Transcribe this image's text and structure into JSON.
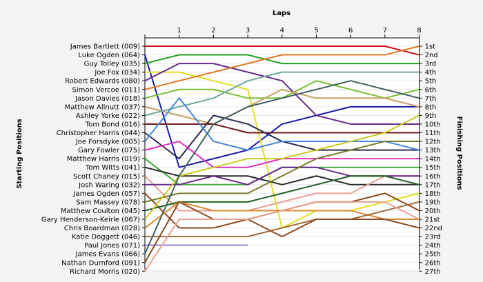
{
  "chart_data": {
    "type": "line",
    "title": "Laps",
    "left_label": "Starting Positions",
    "right_label": "Finishing Positions",
    "x_ticks": [
      "1",
      "2",
      "3",
      "4",
      "5",
      "6",
      "7",
      "8"
    ],
    "finish_labels": [
      "1st",
      "2nd",
      "3rd",
      "4th",
      "5th",
      "6th",
      "7th",
      "8th",
      "9th",
      "10th",
      "11th",
      "12th",
      "13th",
      "14th",
      "15th",
      "16th",
      "17th",
      "18th",
      "19th",
      "20th",
      "21st",
      "22nd",
      "23rd",
      "24th",
      "25th",
      "26th",
      "27th"
    ],
    "ylim": [
      1,
      27
    ],
    "series": [
      {
        "name": "James Bartlett (009)",
        "color": "#cc1111",
        "values": [
          1,
          1,
          1,
          1,
          1,
          1,
          1,
          1,
          2
        ]
      },
      {
        "name": "Luke Ogden (064)",
        "color": "#1a1aaa",
        "values": [
          2,
          15,
          14,
          13,
          10,
          9,
          8,
          8,
          8
        ]
      },
      {
        "name": "Guy Tolley (035)",
        "color": "#22a022",
        "values": [
          3,
          2,
          2,
          2,
          3,
          3,
          3,
          3,
          3
        ]
      },
      {
        "name": "Joe Fox (034)",
        "color": "#e0e020",
        "values": [
          4,
          4,
          5,
          6,
          22,
          20,
          20,
          19,
          18
        ]
      },
      {
        "name": "Robert Edwards (080)",
        "color": "#6a2a8a",
        "values": [
          5,
          3,
          3,
          4,
          5,
          9,
          10,
          10,
          10
        ]
      },
      {
        "name": "Simon Vercoe (011)",
        "color": "#e07820",
        "values": [
          6,
          5,
          4,
          3,
          2,
          2,
          2,
          2,
          1
        ]
      },
      {
        "name": "Jason Davies (018)",
        "color": "#7ac030",
        "values": [
          7,
          6,
          6,
          7,
          7,
          5,
          6,
          7,
          6
        ]
      },
      {
        "name": "Matthew Allnutt (037)",
        "color": "#c8a060",
        "values": [
          8,
          9,
          10,
          8,
          6,
          7,
          7,
          7,
          8
        ]
      },
      {
        "name": "Ashley Yorke (022)",
        "color": "#70a8a0",
        "values": [
          9,
          8,
          7,
          5,
          4,
          4,
          4,
          4,
          4
        ]
      },
      {
        "name": "Tom Bond (016)",
        "color": "#701818",
        "values": [
          10,
          10,
          10,
          11,
          11,
          11,
          11,
          11,
          11
        ]
      },
      {
        "name": "Christopher Harris (044)",
        "color": "#2a2a50",
        "values": [
          11,
          14,
          9,
          10,
          12,
          13,
          13,
          13,
          13
        ]
      },
      {
        "name": "Joe Forsdyke (005)",
        "color": "#4488dd",
        "values": [
          12,
          7,
          12,
          13,
          12,
          12,
          12,
          12,
          13
        ]
      },
      {
        "name": "Gary Fowler (075)",
        "color": "#e030c0",
        "values": [
          13,
          12,
          15,
          15,
          14,
          14,
          14,
          14,
          14
        ]
      },
      {
        "name": "Matthew Harris (019)",
        "color": "#44aa44",
        "values": [
          14,
          17,
          17,
          17,
          15,
          15,
          15,
          15,
          15
        ]
      },
      {
        "name": "Tom Witts (041)",
        "color": "#2a2a2a",
        "values": [
          15,
          16,
          16,
          16,
          17,
          16,
          17,
          17,
          17
        ]
      },
      {
        "name": "Scott Chaney (015)",
        "color": "#e8a090",
        "values": [
          16,
          20,
          20,
          20,
          19,
          18,
          18,
          16,
          16
        ]
      },
      {
        "name": "Josh Waring (032)",
        "color": "#6a2a8a",
        "values": [
          17,
          17,
          16,
          17,
          15,
          15,
          16,
          16,
          16
        ]
      },
      {
        "name": "James Ogden (057)",
        "color": "#8a4a20",
        "values": [
          18,
          22,
          22,
          21,
          20,
          19,
          19,
          18,
          20
        ]
      },
      {
        "name": "Sam Massey (078)",
        "color": "#7a7a2a",
        "values": [
          19,
          18,
          18,
          18,
          16,
          14,
          13,
          12,
          12
        ]
      },
      {
        "name": "Matthew Coulton (045)",
        "color": "#206020",
        "values": [
          20,
          19,
          19,
          19,
          18,
          17,
          16,
          16,
          17
        ]
      },
      {
        "name": "Gary Henderson-Keirle (067)",
        "color": "#c8c820",
        "values": [
          21,
          16,
          15,
          14,
          14,
          13,
          12,
          11,
          9
        ]
      },
      {
        "name": "Chris Boardman (028)",
        "color": "#d88a30",
        "values": [
          22,
          19,
          20,
          20,
          20,
          20,
          20,
          21,
          21
        ]
      },
      {
        "name": "Katie Doggett (046)",
        "color": "#a06a38",
        "values": [
          23,
          23,
          23,
          23,
          22,
          21,
          21,
          20,
          19
        ]
      },
      {
        "name": "Paul Jones (071)",
        "color": "#8888cc",
        "values": [
          24,
          24,
          24,
          24
        ]
      },
      {
        "name": "James Evans (066)",
        "color": "#406060",
        "values": [
          25,
          16,
          10,
          8,
          7,
          6,
          5,
          6,
          7
        ]
      },
      {
        "name": "Nathan Durnford (091)",
        "color": "#8a4a20",
        "values": [
          26,
          19,
          21,
          21,
          23,
          21,
          21,
          21,
          22
        ]
      },
      {
        "name": "Richard Morris (020)",
        "color": "#e8a090",
        "values": [
          27,
          21,
          21,
          21,
          20,
          19,
          19,
          19,
          21
        ]
      }
    ]
  }
}
